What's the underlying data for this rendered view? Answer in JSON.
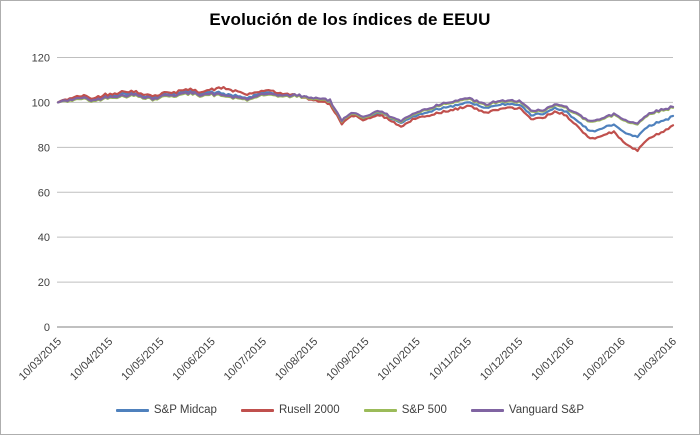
{
  "chart_data": {
    "type": "line",
    "title": "Evolución de los índices de EEUU",
    "xlabel": "",
    "ylabel": "",
    "ylim": [
      0,
      120
    ],
    "y_ticks": [
      0,
      20,
      40,
      60,
      80,
      100,
      120
    ],
    "x_tick_labels": [
      "10/03/2015",
      "10/04/2015",
      "10/05/2015",
      "10/06/2015",
      "10/07/2015",
      "10/08/2015",
      "10/09/2015",
      "10/10/2015",
      "10/11/2015",
      "10/12/2015",
      "10/01/2016",
      "10/02/2016",
      "10/03/2016"
    ],
    "grid": "horizontal",
    "legend_position": "bottom",
    "sampling": "weekly index values, base 100 at 10/03/2015",
    "series": [
      {
        "name": "S&P Midcap",
        "color": "#4F81BD",
        "values": [
          100.0,
          101.6,
          102.6,
          101.3,
          102.9,
          103.6,
          104.2,
          103.5,
          102.2,
          103.5,
          104.1,
          104.8,
          104.1,
          104.6,
          104.0,
          102.8,
          101.8,
          103.8,
          104.3,
          103.5,
          103.4,
          102.3,
          101.6,
          100.2,
          91.4,
          94.8,
          92.8,
          95.7,
          93.3,
          90.8,
          93.6,
          95.4,
          97.0,
          98.3,
          99.4,
          99.8,
          97.2,
          98.6,
          98.9,
          99.4,
          94.0,
          94.8,
          97.2,
          96.2,
          91.0,
          87.5,
          88.3,
          90.2,
          86.2,
          85.0,
          90.0,
          91.5,
          94.0
        ]
      },
      {
        "name": "Rusell 2000",
        "color": "#C0504D",
        "values": [
          100.0,
          101.9,
          103.1,
          101.8,
          103.5,
          104.3,
          105.0,
          104.2,
          102.8,
          104.2,
          104.8,
          105.6,
          104.8,
          105.6,
          106.4,
          104.9,
          103.4,
          104.9,
          105.2,
          103.9,
          103.4,
          101.8,
          100.8,
          99.2,
          90.8,
          94.2,
          92.0,
          94.8,
          92.2,
          89.3,
          92.2,
          93.8,
          95.2,
          96.4,
          97.6,
          98.2,
          95.2,
          96.8,
          97.2,
          98.0,
          92.0,
          93.0,
          95.6,
          94.4,
          88.5,
          84.0,
          85.2,
          86.8,
          81.5,
          78.8,
          84.5,
          86.5,
          89.8
        ]
      },
      {
        "name": "S&P 500",
        "color": "#9BBB59",
        "values": [
          100.0,
          100.8,
          101.7,
          100.5,
          101.8,
          102.5,
          103.0,
          102.5,
          101.3,
          102.5,
          103.0,
          103.7,
          103.1,
          103.4,
          102.8,
          101.9,
          101.0,
          102.7,
          103.3,
          102.7,
          102.9,
          102.1,
          101.6,
          100.4,
          91.7,
          95.1,
          93.1,
          96.1,
          93.8,
          91.4,
          94.4,
          96.4,
          98.2,
          99.6,
          100.9,
          101.1,
          98.6,
          99.9,
          100.2,
          100.6,
          95.4,
          96.1,
          98.6,
          97.8,
          93.8,
          91.6,
          92.4,
          94.6,
          91.6,
          90.4,
          95.1,
          96.1,
          97.6
        ]
      },
      {
        "name": "Vanguard S&P",
        "color": "#8064A2",
        "values": [
          100.0,
          101.2,
          102.1,
          100.9,
          102.2,
          102.9,
          103.4,
          102.9,
          101.7,
          102.9,
          103.4,
          104.1,
          103.5,
          103.8,
          103.2,
          102.3,
          101.4,
          103.1,
          103.7,
          103.1,
          103.3,
          102.5,
          102.0,
          100.8,
          92.0,
          95.5,
          93.5,
          96.5,
          94.2,
          91.8,
          94.8,
          96.8,
          98.6,
          100.0,
          101.3,
          101.5,
          99.0,
          100.3,
          100.6,
          101.0,
          95.8,
          96.5,
          99.0,
          98.2,
          94.2,
          92.0,
          92.8,
          95.0,
          92.0,
          90.8,
          95.5,
          96.5,
          98.0
        ]
      }
    ]
  },
  "colors": {
    "background": "#ffffff",
    "border": "#aeaeae",
    "gridline": "#bfbfbf",
    "axis_line": "#808080",
    "tick_text": "#3f3f3f",
    "title_text": "#000000"
  }
}
